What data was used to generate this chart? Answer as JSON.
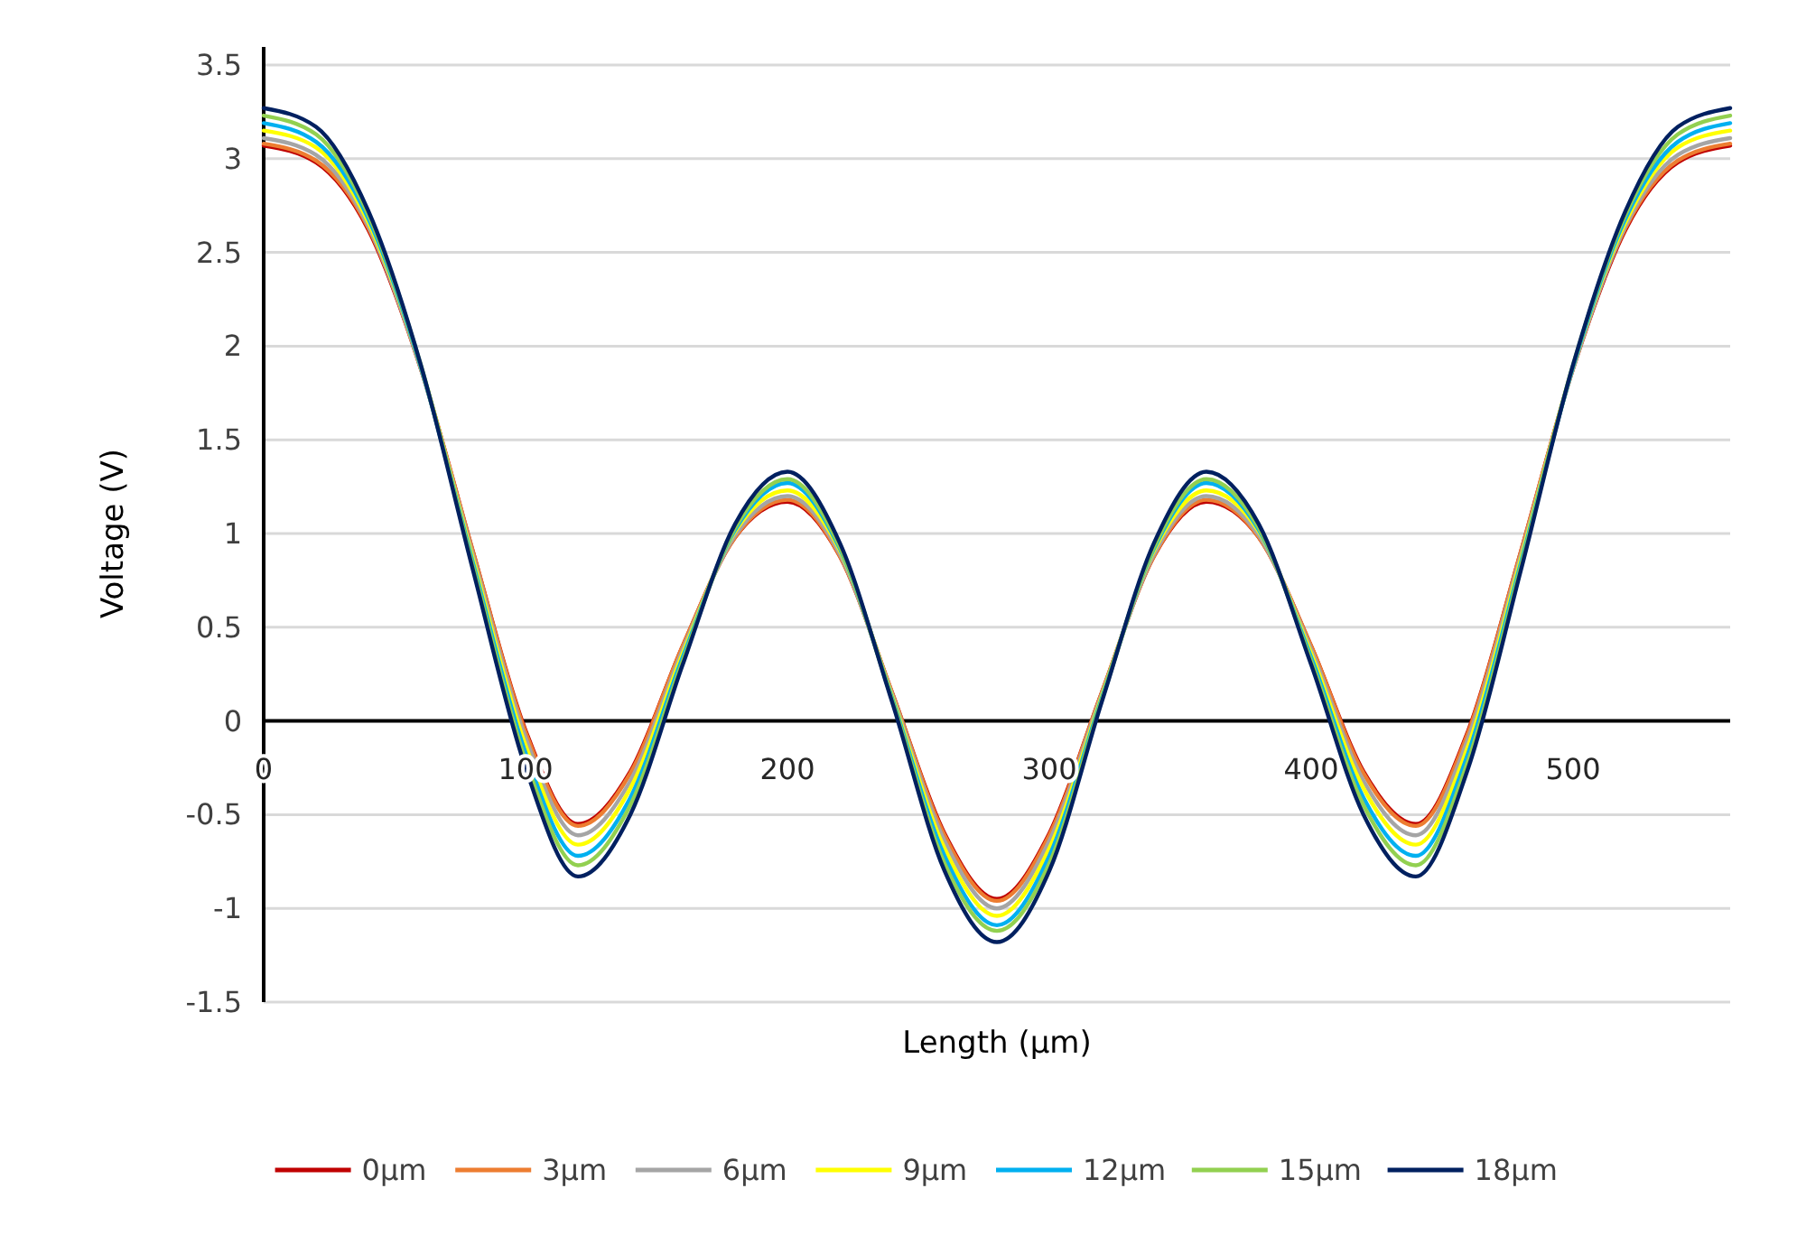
{
  "chart_data": {
    "type": "line",
    "xlabel": "Length (µm)",
    "ylabel": "Voltage (V)",
    "x": [
      0,
      20,
      40,
      60,
      80,
      100,
      120,
      140,
      160,
      180,
      200,
      220,
      240,
      260,
      280,
      300,
      320,
      340,
      360,
      380,
      400,
      420,
      440,
      460,
      480,
      500,
      520,
      540,
      560
    ],
    "series": [
      {
        "name": "0µm",
        "color": "#c00000",
        "values": [
          3.07,
          2.98,
          2.62,
          1.88,
          0.9,
          -0.05,
          -0.55,
          -0.27,
          0.4,
          0.98,
          1.17,
          0.88,
          0.15,
          -0.6,
          -0.95,
          -0.6,
          0.15,
          0.88,
          1.17,
          0.98,
          0.4,
          -0.27,
          -0.55,
          -0.05,
          0.9,
          1.88,
          2.62,
          2.98,
          3.07
        ]
      },
      {
        "name": "3µm",
        "color": "#ed7d31",
        "values": [
          3.08,
          2.99,
          2.63,
          1.88,
          0.9,
          -0.06,
          -0.56,
          -0.28,
          0.4,
          0.98,
          1.18,
          0.88,
          0.15,
          -0.61,
          -0.96,
          -0.61,
          0.15,
          0.88,
          1.18,
          0.98,
          0.4,
          -0.28,
          -0.56,
          -0.06,
          0.9,
          1.88,
          2.63,
          2.99,
          3.08
        ]
      },
      {
        "name": "6µm",
        "color": "#a5a5a5",
        "values": [
          3.11,
          3.02,
          2.64,
          1.88,
          0.88,
          -0.09,
          -0.61,
          -0.32,
          0.38,
          0.99,
          1.2,
          0.89,
          0.14,
          -0.64,
          -1.0,
          -0.64,
          0.14,
          0.89,
          1.2,
          0.99,
          0.38,
          -0.32,
          -0.61,
          -0.09,
          0.88,
          1.88,
          2.64,
          3.02,
          3.11
        ]
      },
      {
        "name": "9µm",
        "color": "#ffff00",
        "values": [
          3.15,
          3.06,
          2.66,
          1.89,
          0.86,
          -0.13,
          -0.66,
          -0.36,
          0.36,
          1.01,
          1.23,
          0.91,
          0.13,
          -0.68,
          -1.04,
          -0.68,
          0.13,
          0.91,
          1.23,
          1.01,
          0.36,
          -0.36,
          -0.66,
          -0.13,
          0.86,
          1.89,
          2.66,
          3.06,
          3.15
        ]
      },
      {
        "name": "12µm",
        "color": "#00b0f0",
        "values": [
          3.19,
          3.09,
          2.68,
          1.89,
          0.84,
          -0.17,
          -0.72,
          -0.41,
          0.34,
          1.02,
          1.27,
          0.92,
          0.12,
          -0.72,
          -1.09,
          -0.72,
          0.12,
          0.92,
          1.27,
          1.02,
          0.34,
          -0.41,
          -0.72,
          -0.17,
          0.84,
          1.89,
          2.68,
          3.09,
          3.19
        ]
      },
      {
        "name": "15µm",
        "color": "#92d050",
        "values": [
          3.23,
          3.13,
          2.7,
          1.9,
          0.82,
          -0.21,
          -0.77,
          -0.45,
          0.32,
          1.03,
          1.29,
          0.93,
          0.11,
          -0.76,
          -1.12,
          -0.76,
          0.11,
          0.93,
          1.29,
          1.03,
          0.32,
          -0.45,
          -0.77,
          -0.21,
          0.82,
          1.9,
          2.7,
          3.13,
          3.23
        ]
      },
      {
        "name": "18µm",
        "color": "#002060",
        "values": [
          3.27,
          3.17,
          2.72,
          1.9,
          0.8,
          -0.25,
          -0.83,
          -0.5,
          0.3,
          1.05,
          1.33,
          0.95,
          0.1,
          -0.8,
          -1.18,
          -0.8,
          0.1,
          0.95,
          1.33,
          1.05,
          0.3,
          -0.5,
          -0.83,
          -0.25,
          0.8,
          1.9,
          2.72,
          3.17,
          3.27
        ]
      }
    ],
    "xlim": [
      0,
      560
    ],
    "xticks": [
      0,
      100,
      200,
      300,
      400,
      500
    ],
    "ylim": [
      -1.5,
      3.5
    ],
    "yticks": [
      -1.5,
      -1,
      -0.5,
      0,
      0.5,
      1,
      1.5,
      2,
      2.5,
      3,
      3.5
    ],
    "grid": "y",
    "legend": "bottom",
    "marker": "none",
    "line_style": "solid"
  }
}
